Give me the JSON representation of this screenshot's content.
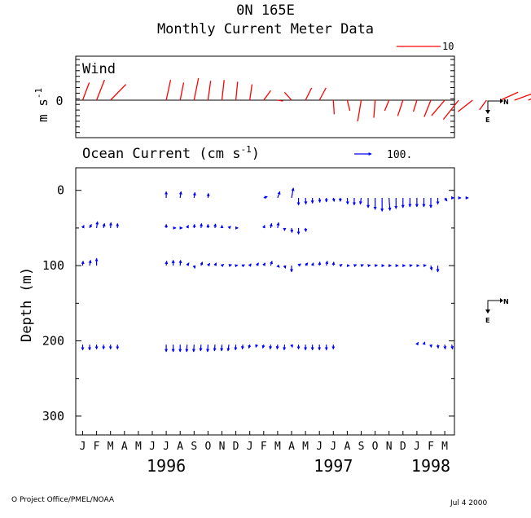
{
  "title_line1": "0N 165E",
  "title_line2": "Monthly Current Meter Data",
  "footer_left": "O Project Office/PMEL/NOAA",
  "footer_right": "Jul  4 2000",
  "colors": {
    "wind": "#ff0000",
    "current": "#0000ff",
    "axis": "#000000"
  },
  "compass": {
    "north": "N",
    "east": "E"
  },
  "chart_data": [
    {
      "type": "stick-vector",
      "panel": "wind",
      "title": "Wind",
      "ylabel": "m s",
      "ylabel_exp": "-1",
      "ytick_label": "0",
      "scale_label": "10",
      "scale_value": 10,
      "months_start": "1996-01",
      "vectors": [
        {
          "m": 0,
          "u": 1.5,
          "v": 4.0
        },
        {
          "m": 1,
          "u": 1.8,
          "v": 4.6
        },
        {
          "m": 2,
          "u": 3.5,
          "v": 3.6
        },
        {
          "m": 6,
          "u": 1.0,
          "v": 4.6
        },
        {
          "m": 7,
          "u": 0.8,
          "v": 4.0
        },
        {
          "m": 8,
          "u": 1.0,
          "v": 5.0
        },
        {
          "m": 9,
          "u": 0.6,
          "v": 4.4
        },
        {
          "m": 10,
          "u": 0.5,
          "v": 4.6
        },
        {
          "m": 11,
          "u": 0.4,
          "v": 4.2
        },
        {
          "m": 12,
          "u": 0.5,
          "v": 3.6
        },
        {
          "m": 13,
          "u": 1.6,
          "v": 2.2
        },
        {
          "m": 14,
          "u": 1.2,
          "v": -0.2
        },
        {
          "m": 15,
          "u": -1.6,
          "v": 1.8
        },
        {
          "m": 16,
          "u": 1.4,
          "v": 2.8
        },
        {
          "m": 17,
          "u": 1.5,
          "v": 2.8
        },
        {
          "m": 18,
          "u": 0.2,
          "v": -3.2
        },
        {
          "m": 19,
          "u": 0.6,
          "v": -2.4
        },
        {
          "m": 20,
          "u": -0.8,
          "v": -4.8
        },
        {
          "m": 21,
          "u": -0.3,
          "v": -4.0
        },
        {
          "m": 22,
          "u": -1.0,
          "v": -2.4
        },
        {
          "m": 23,
          "u": -1.2,
          "v": -3.6
        },
        {
          "m": 24,
          "u": -0.8,
          "v": -2.6
        },
        {
          "m": 25,
          "u": -1.5,
          "v": -3.8
        },
        {
          "m": 26,
          "u": -3.0,
          "v": -3.5
        },
        {
          "m": 27,
          "u": -3.5,
          "v": -4.4
        },
        {
          "m": 28,
          "u": -3.3,
          "v": -2.6
        },
        {
          "m": 29,
          "u": -1.6,
          "v": -2.2
        },
        {
          "m": 30,
          "u": 4.0,
          "v": 1.8
        },
        {
          "m": 31,
          "u": 4.4,
          "v": 1.6
        },
        {
          "m": 32,
          "u": 5.4,
          "v": 2.4
        },
        {
          "m": 33,
          "u": 5.0,
          "v": 2.0
        },
        {
          "m": 34,
          "u": 3.0,
          "v": 2.8
        },
        {
          "m": 35,
          "u": 2.6,
          "v": 0.6
        }
      ]
    },
    {
      "type": "stick-vector",
      "panel": "current",
      "title": "Ocean Current (cm s",
      "title_exp": "-1",
      "title_close": ")",
      "ylabel": "Depth (m)",
      "scale_label": "100.",
      "scale_value": 100,
      "yticks": [
        0,
        100,
        200,
        300
      ],
      "ylim": [
        -30,
        325
      ],
      "x_months": [
        "J",
        "F",
        "M",
        "A",
        "M",
        "J",
        "J",
        "A",
        "S",
        "O",
        "N",
        "D",
        "J",
        "F",
        "M",
        "A",
        "M",
        "J",
        "J",
        "A",
        "S",
        "O",
        "N",
        "D",
        "J",
        "F",
        "M"
      ],
      "years": [
        {
          "label": "1996",
          "center_month": 6
        },
        {
          "label": "1997",
          "center_month": 18
        },
        {
          "label": "1998",
          "center_month": 25
        }
      ],
      "levels": [
        {
          "depth": 10,
          "vectors": [
            {
              "m": 6,
              "u": 0,
              "v": 14
            },
            {
              "m": 7,
              "u": 2,
              "v": 14
            },
            {
              "m": 8,
              "u": 2,
              "v": 12
            },
            {
              "m": 9,
              "u": 1,
              "v": 10
            },
            {
              "m": 13,
              "u": 8,
              "v": 3
            },
            {
              "m": 14,
              "u": 5,
              "v": 14
            },
            {
              "m": 15,
              "u": 4,
              "v": 22
            },
            {
              "m": 15.5,
              "u": 0,
              "v": -16
            },
            {
              "m": 16,
              "u": 1,
              "v": -14
            },
            {
              "m": 16.5,
              "u": 0,
              "v": -12
            },
            {
              "m": 17,
              "u": 1,
              "v": -10
            },
            {
              "m": 17.5,
              "u": 0,
              "v": -9
            },
            {
              "m": 18,
              "u": 2,
              "v": -8
            },
            {
              "m": 18.5,
              "u": 0,
              "v": -8
            },
            {
              "m": 19,
              "u": 1,
              "v": -14
            },
            {
              "m": 19.5,
              "u": 0,
              "v": -16
            },
            {
              "m": 20,
              "u": -2,
              "v": -14
            },
            {
              "m": 20.5,
              "u": 0,
              "v": -22
            },
            {
              "m": 21,
              "u": 0,
              "v": -26
            },
            {
              "m": 21.5,
              "u": 0,
              "v": -30
            },
            {
              "m": 22,
              "u": 2,
              "v": -28
            },
            {
              "m": 22.5,
              "u": 0,
              "v": -24
            },
            {
              "m": 23,
              "u": 0,
              "v": -22
            },
            {
              "m": 23.5,
              "u": 0,
              "v": -20
            },
            {
              "m": 24,
              "u": 0,
              "v": -20
            },
            {
              "m": 24.5,
              "u": 0,
              "v": -20
            },
            {
              "m": 25,
              "u": 0,
              "v": -22
            },
            {
              "m": 25.5,
              "u": 0,
              "v": -14
            },
            {
              "m": 26,
              "u": 5,
              "v": -7
            },
            {
              "m": 26.5,
              "u": 5,
              "v": 0
            },
            {
              "m": 27,
              "u": 5,
              "v": 0
            },
            {
              "m": 27.5,
              "u": 6,
              "v": 0
            }
          ]
        },
        {
          "depth": 50,
          "vectors": [
            {
              "m": 0,
              "u": 3,
              "v": 6
            },
            {
              "m": 0.5,
              "u": 4,
              "v": 8
            },
            {
              "m": 1,
              "u": 2,
              "v": 14
            },
            {
              "m": 1.5,
              "u": 2,
              "v": 10
            },
            {
              "m": 2,
              "u": 1,
              "v": 12
            },
            {
              "m": 2.5,
              "u": 0,
              "v": 10
            },
            {
              "m": 6,
              "u": 0,
              "v": 8
            },
            {
              "m": 6.5,
              "u": 6,
              "v": 0
            },
            {
              "m": 7,
              "u": 5,
              "v": 0
            },
            {
              "m": 7.5,
              "u": 3,
              "v": 6
            },
            {
              "m": 8,
              "u": 1,
              "v": 8
            },
            {
              "m": 8.5,
              "u": 1,
              "v": 10
            },
            {
              "m": 9,
              "u": 0,
              "v": 8
            },
            {
              "m": 9.5,
              "u": 1,
              "v": 9
            },
            {
              "m": 10,
              "u": 0,
              "v": 6
            },
            {
              "m": 10.5,
              "u": 4,
              "v": 4
            },
            {
              "m": 11,
              "u": 5,
              "v": 0
            },
            {
              "m": 13,
              "u": 2,
              "v": 6
            },
            {
              "m": 13.5,
              "u": 2,
              "v": 10
            },
            {
              "m": 14,
              "u": 2,
              "v": 12
            },
            {
              "m": 14.5,
              "u": 0,
              "v": -6
            },
            {
              "m": 15,
              "u": 1,
              "v": -10
            },
            {
              "m": 15.5,
              "u": 0,
              "v": -14
            },
            {
              "m": 16,
              "u": 1,
              "v": -8
            }
          ]
        },
        {
          "depth": 100,
          "vectors": [
            {
              "m": 0,
              "u": 1,
              "v": 10
            },
            {
              "m": 0.5,
              "u": 2,
              "v": 12
            },
            {
              "m": 1,
              "u": 0,
              "v": 16
            },
            {
              "m": 6,
              "u": 1,
              "v": 10
            },
            {
              "m": 6.5,
              "u": 0,
              "v": 12
            },
            {
              "m": 7,
              "u": 1,
              "v": 12
            },
            {
              "m": 7.5,
              "u": 4,
              "v": 6
            },
            {
              "m": 8,
              "u": 2,
              "v": -6
            },
            {
              "m": 8.5,
              "u": 3,
              "v": 8
            },
            {
              "m": 9,
              "u": 4,
              "v": 5
            },
            {
              "m": 9.5,
              "u": 3,
              "v": 6
            },
            {
              "m": 10,
              "u": 4,
              "v": 3
            },
            {
              "m": 10.5,
              "u": 6,
              "v": 2
            },
            {
              "m": 11,
              "u": 4,
              "v": 1
            },
            {
              "m": 11.5,
              "u": 4,
              "v": 2
            },
            {
              "m": 12,
              "u": 3,
              "v": 4
            },
            {
              "m": 12.5,
              "u": 4,
              "v": 6
            },
            {
              "m": 13,
              "u": 3,
              "v": 6
            },
            {
              "m": 13.5,
              "u": 3,
              "v": 10
            },
            {
              "m": 14,
              "u": 4,
              "v": -4
            },
            {
              "m": 14.5,
              "u": 2,
              "v": -6
            },
            {
              "m": 15,
              "u": 0,
              "v": -14
            },
            {
              "m": 15.5,
              "u": 5,
              "v": 4
            },
            {
              "m": 16,
              "u": 5,
              "v": 6
            },
            {
              "m": 16.5,
              "u": 2,
              "v": 6
            },
            {
              "m": 17,
              "u": 1,
              "v": 8
            },
            {
              "m": 17.5,
              "u": 2,
              "v": 10
            },
            {
              "m": 18,
              "u": 1,
              "v": 8
            },
            {
              "m": 18.5,
              "u": 4,
              "v": 3
            },
            {
              "m": 19,
              "u": 5,
              "v": 0
            },
            {
              "m": 19.5,
              "u": 5,
              "v": 2
            },
            {
              "m": 20,
              "u": 5,
              "v": 2
            },
            {
              "m": 20.5,
              "u": 5,
              "v": 1
            },
            {
              "m": 21,
              "u": 5,
              "v": 1
            },
            {
              "m": 21.5,
              "u": 5,
              "v": 0
            },
            {
              "m": 22,
              "u": 5,
              "v": 0
            },
            {
              "m": 22.5,
              "u": 5,
              "v": 0
            },
            {
              "m": 23,
              "u": 5,
              "v": 0
            },
            {
              "m": 23.5,
              "u": 5,
              "v": 1
            },
            {
              "m": 24,
              "u": 5,
              "v": 0
            },
            {
              "m": 24.5,
              "u": 5,
              "v": 1
            },
            {
              "m": 25,
              "u": 2,
              "v": -10
            },
            {
              "m": 25.5,
              "u": 0,
              "v": -14
            }
          ]
        },
        {
          "depth": 205,
          "vectors": [
            {
              "m": 0,
              "u": 0,
              "v": -12
            },
            {
              "m": 0.5,
              "u": 0,
              "v": -12
            },
            {
              "m": 1,
              "u": 0,
              "v": -10
            },
            {
              "m": 1.5,
              "u": 0,
              "v": -10
            },
            {
              "m": 2,
              "u": 0,
              "v": -10
            },
            {
              "m": 2.5,
              "u": 0,
              "v": -10
            },
            {
              "m": 6,
              "u": 0,
              "v": -16
            },
            {
              "m": 6.5,
              "u": 0,
              "v": -16
            },
            {
              "m": 7,
              "u": 0,
              "v": -16
            },
            {
              "m": 7.5,
              "u": -1,
              "v": -16
            },
            {
              "m": 8,
              "u": -1,
              "v": -16
            },
            {
              "m": 8.5,
              "u": -1,
              "v": -14
            },
            {
              "m": 9,
              "u": -1,
              "v": -16
            },
            {
              "m": 9.5,
              "u": -1,
              "v": -14
            },
            {
              "m": 10,
              "u": -1,
              "v": -14
            },
            {
              "m": 10.5,
              "u": -2,
              "v": -14
            },
            {
              "m": 11,
              "u": -1,
              "v": -12
            },
            {
              "m": 11.5,
              "u": -1,
              "v": -10
            },
            {
              "m": 12,
              "u": -2,
              "v": -8
            },
            {
              "m": 12.5,
              "u": -2,
              "v": -6
            },
            {
              "m": 13,
              "u": -2,
              "v": -8
            },
            {
              "m": 13.5,
              "u": -1,
              "v": -10
            },
            {
              "m": 14,
              "u": -1,
              "v": -10
            },
            {
              "m": 14.5,
              "u": -1,
              "v": -12
            },
            {
              "m": 15,
              "u": 2,
              "v": -6
            },
            {
              "m": 15.5,
              "u": 0,
              "v": -10
            },
            {
              "m": 16,
              "u": 0,
              "v": -12
            },
            {
              "m": 16.5,
              "u": 0,
              "v": -12
            },
            {
              "m": 17,
              "u": 0,
              "v": -12
            },
            {
              "m": 17.5,
              "u": 0,
              "v": -12
            },
            {
              "m": 18,
              "u": 0,
              "v": -10
            },
            {
              "m": 24,
              "u": 3,
              "v": 5
            },
            {
              "m": 24.5,
              "u": 2,
              "v": 6
            },
            {
              "m": 25,
              "u": 1,
              "v": -6
            },
            {
              "m": 25.5,
              "u": 1,
              "v": -8
            },
            {
              "m": 26,
              "u": 1,
              "v": -10
            },
            {
              "m": 26.5,
              "u": 2,
              "v": -10
            }
          ]
        }
      ]
    }
  ]
}
